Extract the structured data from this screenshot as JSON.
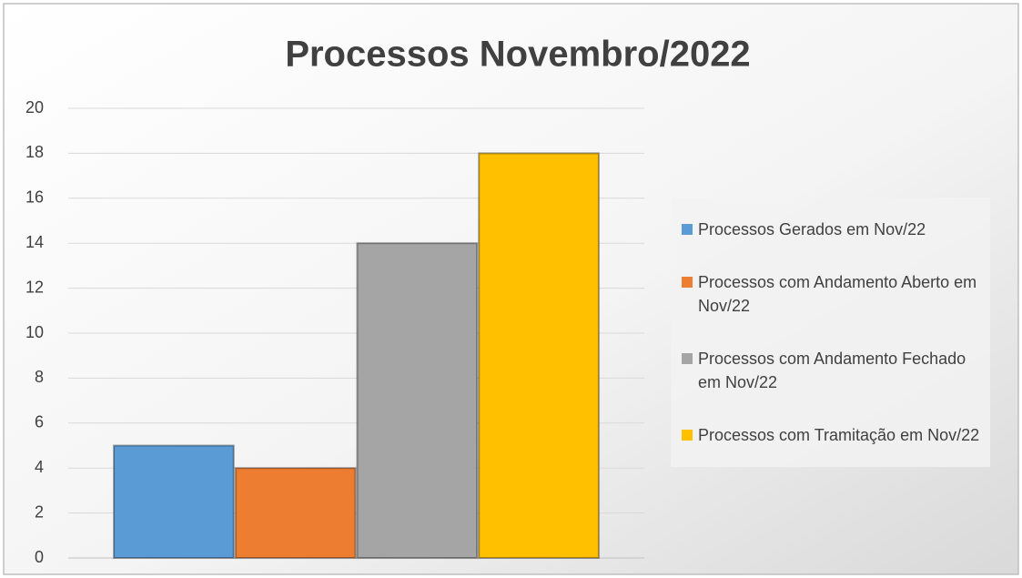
{
  "chart_data": {
    "type": "bar",
    "title": "Processos Novembro/2022",
    "categories": [
      null
    ],
    "series": [
      {
        "name": "Processos Gerados em Nov/22",
        "color": "#5b9bd5",
        "values": [
          5
        ]
      },
      {
        "name": "Processos com Andamento Aberto em Nov/22",
        "color": "#ed7d31",
        "values": [
          4
        ]
      },
      {
        "name": "Processos com Andamento Fechado em Nov/22",
        "color": "#a5a5a5",
        "values": [
          14
        ]
      },
      {
        "name": "Processos com Tramitação em Nov/22",
        "color": "#ffc000",
        "values": [
          18
        ]
      }
    ],
    "ylim": [
      0,
      20
    ],
    "yticks": [
      0,
      2,
      4,
      6,
      8,
      10,
      12,
      14,
      16,
      18,
      20
    ],
    "grid": true,
    "legend": "right"
  }
}
